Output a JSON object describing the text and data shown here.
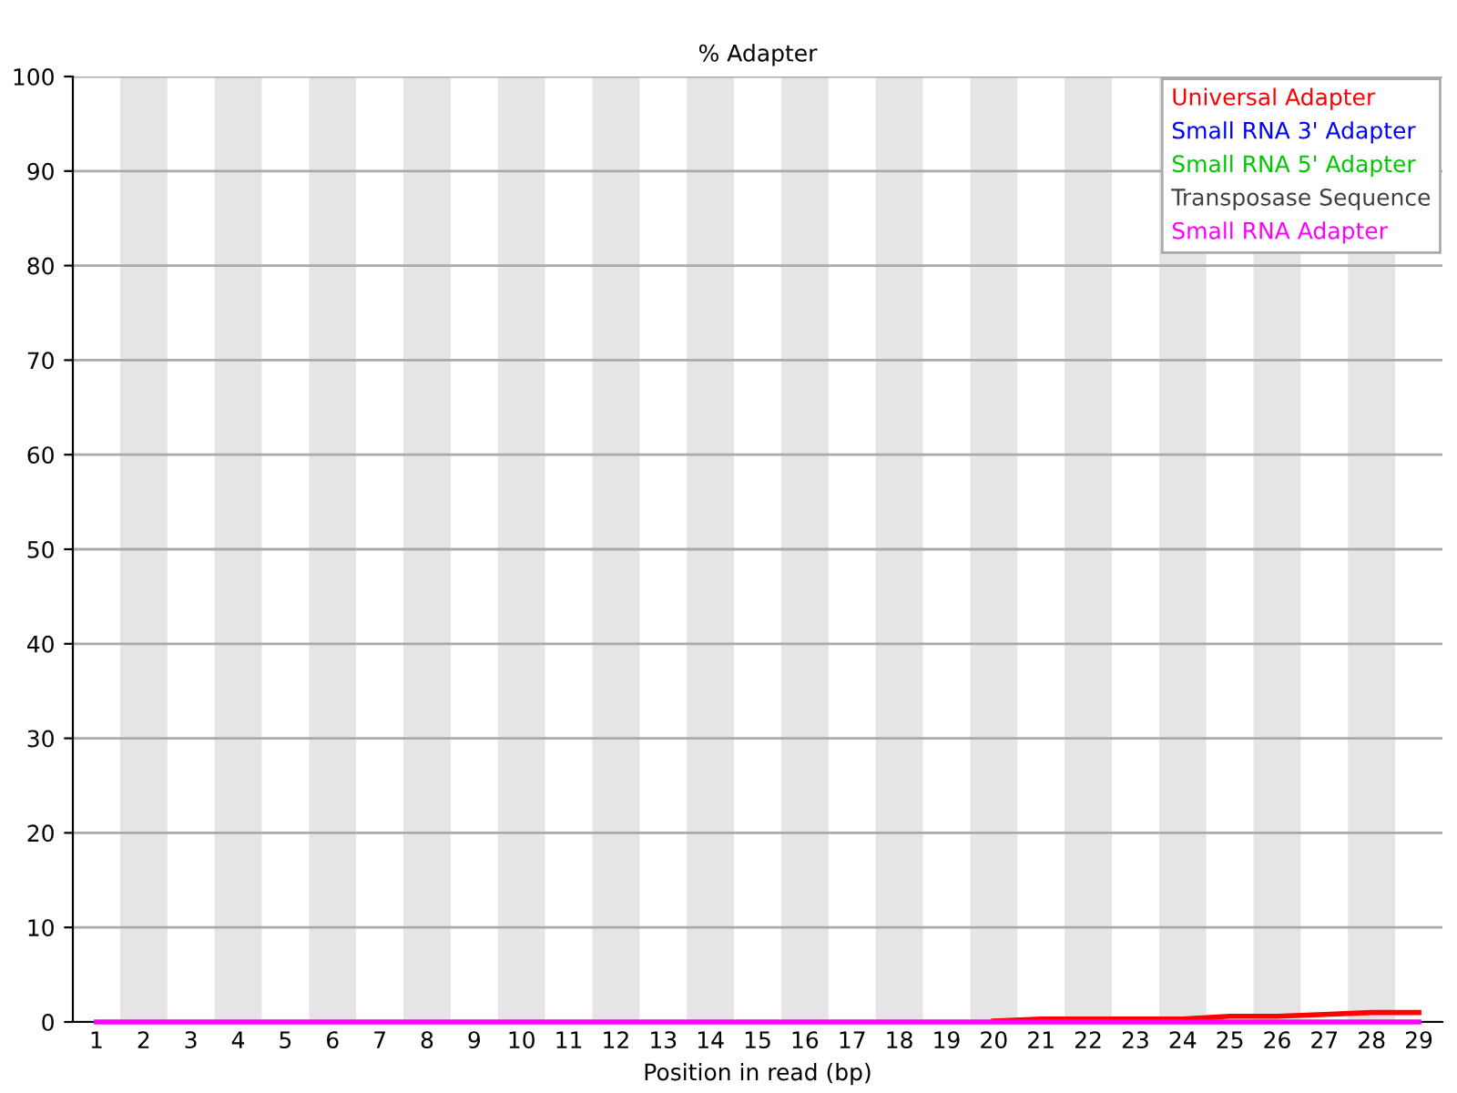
{
  "chart_data": {
    "type": "line",
    "title": "% Adapter",
    "xlabel": "Position in read (bp)",
    "categories": [
      "1",
      "2",
      "3",
      "4",
      "5",
      "6",
      "7",
      "8",
      "9",
      "10",
      "11",
      "12",
      "13",
      "14",
      "15",
      "16",
      "17",
      "18",
      "19",
      "20",
      "21",
      "22",
      "23",
      "24",
      "25",
      "26",
      "27",
      "28",
      "29"
    ],
    "series": [
      {
        "name": "Universal Adapter",
        "color": "#ff0000",
        "values": [
          null,
          null,
          null,
          null,
          null,
          null,
          null,
          null,
          null,
          null,
          null,
          null,
          null,
          null,
          null,
          null,
          null,
          null,
          null,
          0.1,
          0.3,
          0.3,
          0.3,
          0.3,
          0.6,
          0.6,
          0.8,
          1.0,
          1.0
        ]
      },
      {
        "name": "Small RNA 3' Adapter",
        "color": "#0000ff",
        "values": [
          null,
          null,
          null,
          null,
          null,
          null,
          null,
          null,
          null,
          null,
          null,
          null,
          null,
          null,
          null,
          null,
          null,
          null,
          null,
          null,
          null,
          null,
          null,
          null,
          null,
          null,
          null,
          null,
          null
        ]
      },
      {
        "name": "Small RNA 5' Adapter",
        "color": "#00c800",
        "values": [
          null,
          null,
          null,
          null,
          null,
          null,
          null,
          null,
          null,
          null,
          null,
          null,
          null,
          null,
          null,
          null,
          null,
          null,
          null,
          null,
          null,
          null,
          null,
          null,
          null,
          null,
          null,
          null,
          null
        ]
      },
      {
        "name": "Transposase Sequence",
        "color": "#404040",
        "values": [
          null,
          null,
          null,
          null,
          null,
          null,
          null,
          null,
          null,
          null,
          null,
          null,
          null,
          null,
          null,
          null,
          null,
          null,
          null,
          null,
          null,
          null,
          null,
          null,
          null,
          null,
          null,
          null,
          null
        ]
      },
      {
        "name": "Small RNA Adapter",
        "color": "#ff00ff",
        "values": [
          0,
          0,
          0,
          0,
          0,
          0,
          0,
          0,
          0,
          0,
          0,
          0,
          0,
          0,
          0,
          0,
          0,
          0,
          0,
          0,
          0,
          0,
          0,
          0,
          0,
          0,
          0,
          0,
          0
        ]
      }
    ],
    "ylim": [
      0,
      100
    ],
    "yticks": [
      0,
      10,
      20,
      30,
      40,
      50,
      60,
      70,
      80,
      90,
      100
    ],
    "grid": "y",
    "legend": "top right",
    "marker": "none",
    "line_style": "solid"
  }
}
